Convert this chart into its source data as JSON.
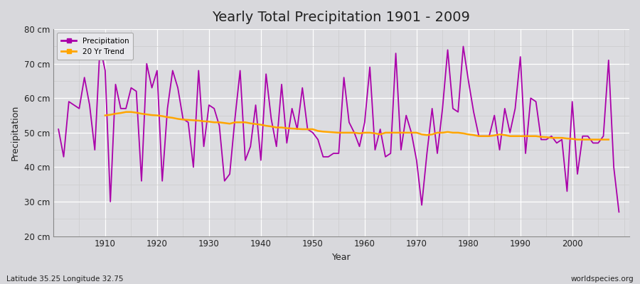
{
  "title": "Yearly Total Precipitation 1901 - 2009",
  "xlabel": "Year",
  "ylabel": "Precipitation",
  "lat_lon_label": "Latitude 35.25 Longitude 32.75",
  "watermark": "worldspecies.org",
  "ylim": [
    20,
    80
  ],
  "yticks": [
    20,
    30,
    40,
    50,
    60,
    70,
    80
  ],
  "ytick_labels": [
    "20 cm",
    "30 cm",
    "40 cm",
    "50 cm",
    "60 cm",
    "70 cm",
    "80 cm"
  ],
  "xticks": [
    1910,
    1920,
    1930,
    1940,
    1950,
    1960,
    1970,
    1980,
    1990,
    2000
  ],
  "years": [
    1901,
    1902,
    1903,
    1904,
    1905,
    1906,
    1907,
    1908,
    1909,
    1910,
    1911,
    1912,
    1913,
    1914,
    1915,
    1916,
    1917,
    1918,
    1919,
    1920,
    1921,
    1922,
    1923,
    1924,
    1925,
    1926,
    1927,
    1928,
    1929,
    1930,
    1931,
    1932,
    1933,
    1934,
    1935,
    1936,
    1937,
    1938,
    1939,
    1940,
    1941,
    1942,
    1943,
    1944,
    1945,
    1946,
    1947,
    1948,
    1949,
    1950,
    1951,
    1952,
    1953,
    1954,
    1955,
    1956,
    1957,
    1958,
    1959,
    1960,
    1961,
    1962,
    1963,
    1964,
    1965,
    1966,
    1967,
    1968,
    1969,
    1970,
    1971,
    1972,
    1973,
    1974,
    1975,
    1976,
    1977,
    1978,
    1979,
    1980,
    1981,
    1982,
    1983,
    1984,
    1985,
    1986,
    1987,
    1988,
    1989,
    1990,
    1991,
    1992,
    1993,
    1994,
    1995,
    1996,
    1997,
    1998,
    1999,
    2000,
    2001,
    2002,
    2003,
    2004,
    2005,
    2006,
    2007,
    2008,
    2009
  ],
  "precipitation": [
    51,
    43,
    59,
    58,
    57,
    66,
    58,
    45,
    75,
    68,
    30,
    64,
    57,
    57,
    63,
    62,
    36,
    70,
    63,
    68,
    36,
    57,
    68,
    63,
    54,
    53,
    40,
    68,
    46,
    58,
    57,
    52,
    36,
    38,
    54,
    68,
    42,
    46,
    58,
    42,
    67,
    54,
    46,
    64,
    47,
    57,
    51,
    63,
    51,
    50,
    48,
    43,
    43,
    44,
    44,
    66,
    53,
    50,
    46,
    53,
    69,
    45,
    51,
    43,
    44,
    73,
    45,
    55,
    50,
    42,
    29,
    44,
    57,
    44,
    57,
    74,
    57,
    56,
    75,
    65,
    56,
    49,
    49,
    49,
    55,
    45,
    57,
    50,
    57,
    72,
    44,
    60,
    59,
    48,
    48,
    49,
    47,
    48,
    33,
    59,
    38,
    49,
    49,
    47,
    47,
    49,
    71,
    40,
    27
  ],
  "trend": [
    null,
    null,
    null,
    null,
    null,
    null,
    null,
    null,
    null,
    55.0,
    55.2,
    55.5,
    55.7,
    56.0,
    56.0,
    55.8,
    55.5,
    55.3,
    55.1,
    55.0,
    54.8,
    54.5,
    54.3,
    54.0,
    53.8,
    53.7,
    53.6,
    53.5,
    53.3,
    53.2,
    53.0,
    53.0,
    52.8,
    52.6,
    53.0,
    53.0,
    53.0,
    52.7,
    52.5,
    52.3,
    52.0,
    51.8,
    51.5,
    51.5,
    51.3,
    51.2,
    51.1,
    51.0,
    51.0,
    51.0,
    50.5,
    50.3,
    50.2,
    50.1,
    50.0,
    50.0,
    50.0,
    50.0,
    49.8,
    50.0,
    50.0,
    49.8,
    49.5,
    50.0,
    50.0,
    50.0,
    50.0,
    50.0,
    50.0,
    50.0,
    49.5,
    49.3,
    49.5,
    50.0,
    50.0,
    50.2,
    50.0,
    50.0,
    49.8,
    49.5,
    49.3,
    49.0,
    49.0,
    49.0,
    49.2,
    49.5,
    49.3,
    49.0,
    49.0,
    49.0,
    49.0,
    49.0,
    49.0,
    48.8,
    48.7,
    48.5,
    48.5,
    48.5,
    48.3,
    48.2,
    48.0,
    48.0,
    48.0,
    48.0,
    48.0,
    48.0,
    48.0,
    null
  ],
  "line_color": "#AA00AA",
  "trend_color": "#FFA500",
  "plot_bg_color": "#DCDCE0",
  "fig_bg_color": "#D8D8DC",
  "grid_major_color": "#FFFFFF",
  "grid_minor_color": "#CCCCCC",
  "text_color": "#222222",
  "legend_bg": "#E8E8EC",
  "title_fontsize": 14,
  "axis_fontsize": 9,
  "tick_fontsize": 8.5,
  "annotation_fontsize": 7.5
}
